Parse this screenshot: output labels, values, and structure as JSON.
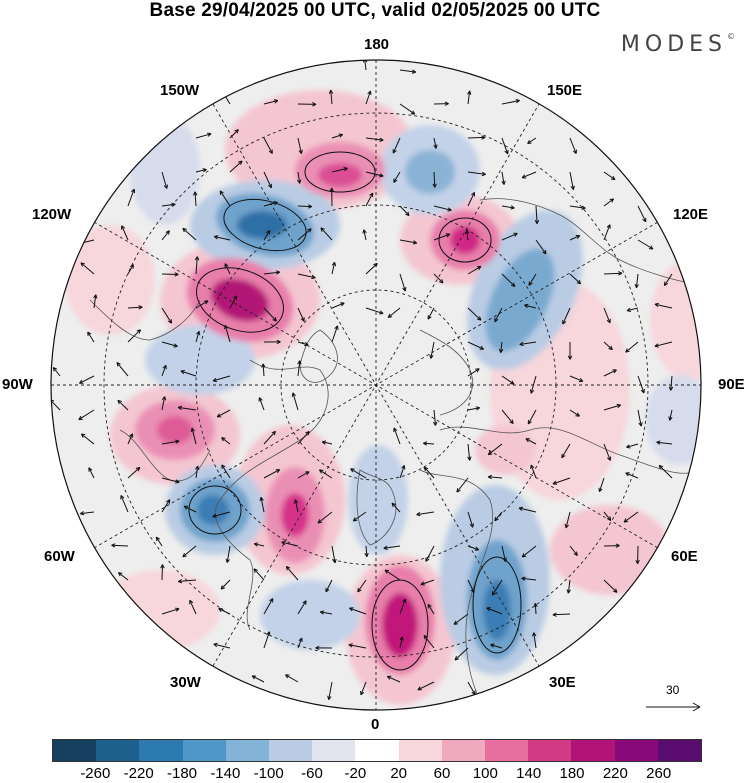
{
  "title": "Base 29/04/2025 00 UTC, valid 02/05/2025 00 UTC",
  "brand": "MODES",
  "brand_mark": "©",
  "longitude_labels": {
    "top": "180",
    "bottom": "0",
    "left": "90W",
    "right": "90E",
    "nw_upper": "150W",
    "nw_lower": "120W",
    "ne_upper": "150E",
    "ne_lower": "120E",
    "sw_upper": "60W",
    "sw_lower": "30W",
    "se_upper": "60E",
    "se_lower": "30E"
  },
  "reference_vector": "30",
  "colorbar": {
    "colors": [
      "#17405f",
      "#1d5f8d",
      "#2d7ab0",
      "#4f97c6",
      "#83b3d6",
      "#b9cce4",
      "#e2e4f0",
      "#ffffff",
      "#f7d6dc",
      "#f0a9bf",
      "#e66f9f",
      "#d23a85",
      "#b21376",
      "#88087a",
      "#5a0b6e"
    ],
    "ticks": [
      "-260",
      "-220",
      "-180",
      "-140",
      "-100",
      "-60",
      "-20",
      "20",
      "60",
      "100",
      "140",
      "180",
      "220",
      "260"
    ]
  },
  "colors": {
    "positive_strong": "#c2187a",
    "positive_weak": "#f4bccb",
    "negative_strong": "#2a6fa6",
    "negative_weak": "#bccde4",
    "neutral": "#ebebeb"
  }
}
